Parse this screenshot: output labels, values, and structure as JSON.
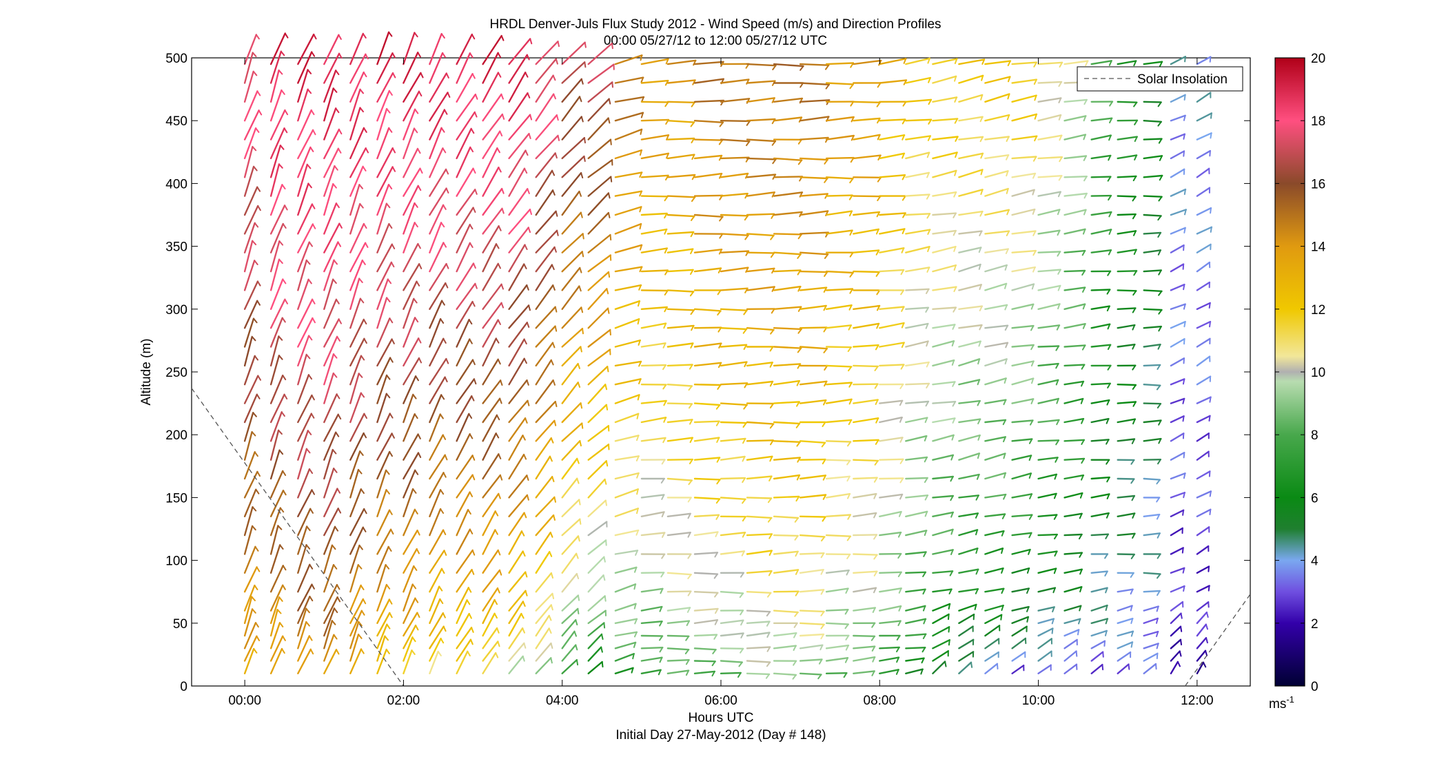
{
  "figure": {
    "title_line1": "HRDL Denver-Juls Flux Study 2012 - Wind Speed (m/s) and Direction Profiles",
    "title_line2": "00:00 05/27/12 to 12:00 05/27/12  UTC",
    "caption": "Initial Day 27-May-2012 (Day # 148)"
  },
  "legend": {
    "entry": "Solar Insolation"
  },
  "colorbar": {
    "unit_label": "ms",
    "unit_exponent": "-1",
    "ticks": [
      "20",
      "18",
      "16",
      "14",
      "12",
      "10",
      "8",
      "6",
      "4",
      "2",
      "0"
    ],
    "range": [
      0,
      20
    ]
  },
  "chart_data": {
    "type": "wind-barb-profile",
    "title": "HRDL Denver-Juls Flux Study 2012 - Wind Speed (m/s) and Direction Profiles",
    "subtitle": "00:00 05/27/12 to 12:00 05/27/12  UTC",
    "xlabel": "Hours UTC",
    "ylabel": "Altitude (m)",
    "xlim_hours": [
      -0.67,
      12.67
    ],
    "ylim": [
      0,
      500
    ],
    "x_ticks": [
      "00:00",
      "02:00",
      "04:00",
      "06:00",
      "08:00",
      "10:00",
      "12:00"
    ],
    "x_tick_hours": [
      0,
      2,
      4,
      6,
      8,
      10,
      12
    ],
    "y_ticks": [
      "500",
      "450",
      "400",
      "350",
      "300",
      "250",
      "200",
      "150",
      "100",
      "50",
      "0"
    ],
    "y_tick_values": [
      500,
      450,
      400,
      350,
      300,
      250,
      200,
      150,
      100,
      50,
      0
    ],
    "grid": false,
    "legend_position": "top-right",
    "colormap_stops": [
      {
        "speed": 0,
        "color": "#000033"
      },
      {
        "speed": 2,
        "color": "#3300aa"
      },
      {
        "speed": 3,
        "color": "#6f4fe0"
      },
      {
        "speed": 4,
        "color": "#7aa8f0"
      },
      {
        "speed": 5,
        "color": "#1f7f2f"
      },
      {
        "speed": 6,
        "color": "#0a8a14"
      },
      {
        "speed": 8,
        "color": "#48a84c"
      },
      {
        "speed": 9.7,
        "color": "#b8dcb0"
      },
      {
        "speed": 10,
        "color": "#b0b0b0"
      },
      {
        "speed": 10.5,
        "color": "#f2e79a"
      },
      {
        "speed": 12,
        "color": "#f0c800"
      },
      {
        "speed": 14,
        "color": "#e09a10"
      },
      {
        "speed": 16,
        "color": "#8a4a2a"
      },
      {
        "speed": 18,
        "color": "#ff4f80"
      },
      {
        "speed": 20,
        "color": "#b00018"
      }
    ],
    "altitudes": [
      10,
      20,
      30,
      40,
      50,
      60,
      75,
      90,
      105,
      120,
      135,
      150,
      165,
      180,
      195,
      210,
      225,
      240,
      255,
      270,
      285,
      300,
      315,
      330,
      345,
      360,
      375,
      390,
      405,
      420,
      435,
      450,
      465,
      480,
      495
    ],
    "columns": [
      {
        "time_hours": 0.0,
        "low_speed": 13,
        "high_speed": 18,
        "dir_deg": 200
      },
      {
        "time_hours": 0.33,
        "low_speed": 13,
        "high_speed": 19,
        "dir_deg": 200
      },
      {
        "time_hours": 0.67,
        "low_speed": 14,
        "high_speed": 19,
        "dir_deg": 202
      },
      {
        "time_hours": 1.0,
        "low_speed": 14,
        "high_speed": 19,
        "dir_deg": 202
      },
      {
        "time_hours": 1.33,
        "low_speed": 13,
        "high_speed": 19,
        "dir_deg": 202
      },
      {
        "time_hours": 1.67,
        "low_speed": 12,
        "high_speed": 19,
        "dir_deg": 203
      },
      {
        "time_hours": 2.0,
        "low_speed": 12,
        "high_speed": 19,
        "dir_deg": 205
      },
      {
        "time_hours": 2.33,
        "low_speed": 11,
        "high_speed": 19,
        "dir_deg": 207
      },
      {
        "time_hours": 2.67,
        "low_speed": 11,
        "high_speed": 19,
        "dir_deg": 210
      },
      {
        "time_hours": 3.0,
        "low_speed": 11,
        "high_speed": 19,
        "dir_deg": 212
      },
      {
        "time_hours": 3.33,
        "low_speed": 10,
        "high_speed": 19,
        "dir_deg": 215
      },
      {
        "time_hours": 3.67,
        "low_speed": 9,
        "high_speed": 18,
        "dir_deg": 218
      },
      {
        "time_hours": 4.0,
        "low_speed": 7,
        "high_speed": 17,
        "dir_deg": 222
      },
      {
        "time_hours": 4.33,
        "low_speed": 6,
        "high_speed": 17,
        "dir_deg": 228
      },
      {
        "time_hours": 4.67,
        "low_speed": 7,
        "high_speed": 15,
        "dir_deg": 255
      },
      {
        "time_hours": 5.0,
        "low_speed": 7,
        "high_speed": 14,
        "dir_deg": 265
      },
      {
        "time_hours": 5.33,
        "low_speed": 8,
        "high_speed": 14,
        "dir_deg": 268
      },
      {
        "time_hours": 5.67,
        "low_speed": 8,
        "high_speed": 15,
        "dir_deg": 268
      },
      {
        "time_hours": 6.0,
        "low_speed": 8,
        "high_speed": 15,
        "dir_deg": 268
      },
      {
        "time_hours": 6.33,
        "low_speed": 9,
        "high_speed": 15,
        "dir_deg": 268
      },
      {
        "time_hours": 6.67,
        "low_speed": 9,
        "high_speed": 15,
        "dir_deg": 268
      },
      {
        "time_hours": 7.0,
        "low_speed": 9,
        "high_speed": 15,
        "dir_deg": 268
      },
      {
        "time_hours": 7.33,
        "low_speed": 8,
        "high_speed": 14,
        "dir_deg": 267
      },
      {
        "time_hours": 7.67,
        "low_speed": 8,
        "high_speed": 14,
        "dir_deg": 266
      },
      {
        "time_hours": 8.0,
        "low_speed": 7,
        "high_speed": 13,
        "dir_deg": 264
      },
      {
        "time_hours": 8.33,
        "low_speed": 6,
        "high_speed": 12,
        "dir_deg": 262
      },
      {
        "time_hours": 8.67,
        "low_speed": 5,
        "high_speed": 12,
        "dir_deg": 260
      },
      {
        "time_hours": 9.0,
        "low_speed": 4,
        "high_speed": 12,
        "dir_deg": 258
      },
      {
        "time_hours": 9.33,
        "low_speed": 4,
        "high_speed": 12,
        "dir_deg": 258
      },
      {
        "time_hours": 9.67,
        "low_speed": 3,
        "high_speed": 12,
        "dir_deg": 260
      },
      {
        "time_hours": 10.0,
        "low_speed": 3,
        "high_speed": 11,
        "dir_deg": 262
      },
      {
        "time_hours": 10.33,
        "low_speed": 3,
        "high_speed": 10,
        "dir_deg": 262
      },
      {
        "time_hours": 10.67,
        "low_speed": 3,
        "high_speed": 8,
        "dir_deg": 264
      },
      {
        "time_hours": 11.0,
        "low_speed": 3,
        "high_speed": 7,
        "dir_deg": 266
      },
      {
        "time_hours": 11.33,
        "low_speed": 3,
        "high_speed": 6,
        "dir_deg": 268
      },
      {
        "time_hours": 11.67,
        "low_speed": 2,
        "high_speed": 4,
        "dir_deg": 245
      },
      {
        "time_hours": 12.0,
        "low_speed": 2,
        "high_speed": 4,
        "dir_deg": 240
      }
    ],
    "solar_insolation_line": {
      "name": "Solar Insolation",
      "segments": [
        [
          [
            -0.67,
            237
          ],
          [
            2.0,
            0
          ]
        ],
        [
          [
            11.85,
            0
          ],
          [
            12.67,
            73
          ]
        ]
      ]
    }
  }
}
